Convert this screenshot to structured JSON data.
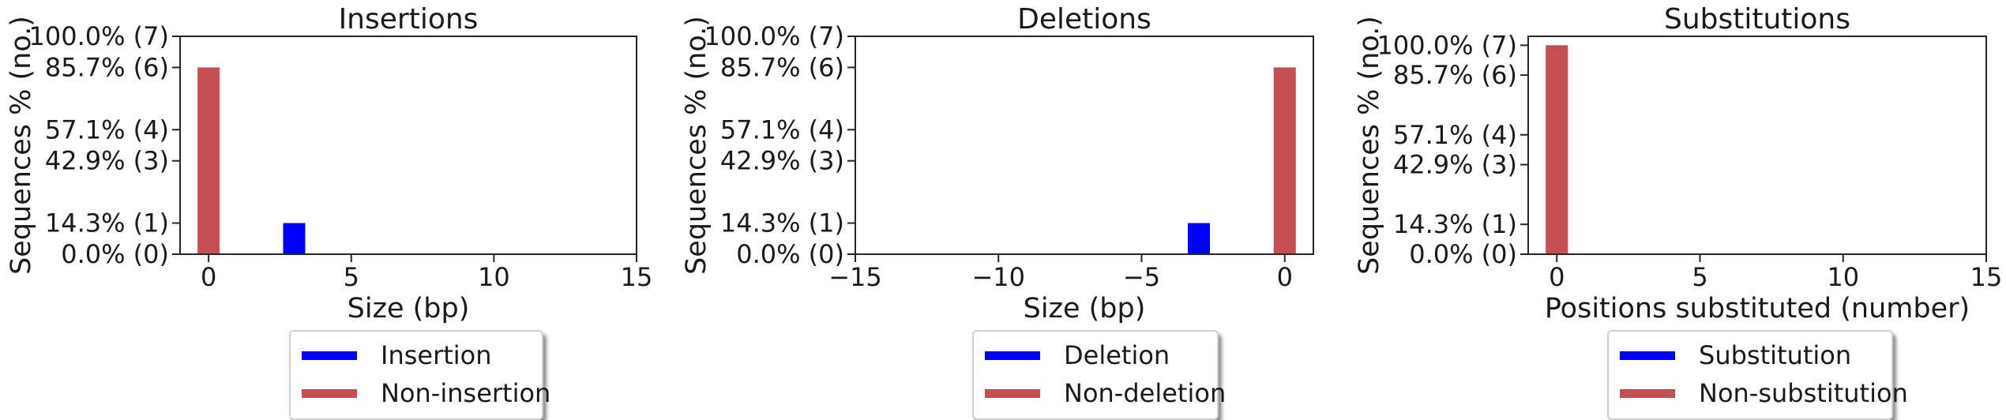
{
  "colors": {
    "highlight": "#0000ff",
    "other": "#c44e52"
  },
  "ytick_labels": [
    "0.0% (0)",
    "14.3% (1)",
    "42.9% (3)",
    "57.1% (4)",
    "85.7% (6)",
    "100.0% (7)"
  ],
  "chart_data": [
    {
      "type": "bar",
      "title": "Insertions",
      "xlabel": "Size (bp)",
      "ylabel": "Sequences % (no.)",
      "xlim": [
        -1,
        15
      ],
      "xticks": [
        0,
        5,
        10,
        15
      ],
      "xtick_labels": [
        "0",
        "5",
        "10",
        "15"
      ],
      "ylim": [
        0,
        7
      ],
      "yticks": [
        0,
        1,
        3,
        4,
        6,
        7
      ],
      "series": [
        {
          "name": "Insertion",
          "color": "#0000ff",
          "x": [
            3
          ],
          "values": [
            1
          ]
        },
        {
          "name": "Non-insertion",
          "color": "#c44e52",
          "x": [
            0
          ],
          "values": [
            6
          ]
        }
      ],
      "legend": [
        "Insertion",
        "Non-insertion"
      ],
      "legend_position": "below"
    },
    {
      "type": "bar",
      "title": "Deletions",
      "xlabel": "Size (bp)",
      "ylabel": "Sequences % (no.)",
      "xlim": [
        -15,
        1
      ],
      "xticks": [
        -15,
        -10,
        -5,
        0
      ],
      "xtick_labels": [
        "−15",
        "−10",
        "−5",
        "0"
      ],
      "ylim": [
        0,
        7
      ],
      "yticks": [
        0,
        1,
        3,
        4,
        6,
        7
      ],
      "series": [
        {
          "name": "Deletion",
          "color": "#0000ff",
          "x": [
            -3
          ],
          "values": [
            1
          ]
        },
        {
          "name": "Non-deletion",
          "color": "#c44e52",
          "x": [
            0
          ],
          "values": [
            6
          ]
        }
      ],
      "legend": [
        "Deletion",
        "Non-deletion"
      ],
      "legend_position": "below"
    },
    {
      "type": "bar",
      "title": "Substitutions",
      "xlabel": "Positions substituted (number)",
      "ylabel": "Sequences % (no.)",
      "xlim": [
        -1,
        15
      ],
      "xticks": [
        0,
        5,
        10,
        15
      ],
      "xtick_labels": [
        "0",
        "5",
        "10",
        "15"
      ],
      "ylim": [
        0,
        7.3
      ],
      "yticks": [
        0,
        1,
        3,
        4,
        6,
        7
      ],
      "series": [
        {
          "name": "Substitution",
          "color": "#0000ff",
          "x": [],
          "values": []
        },
        {
          "name": "Non-substitution",
          "color": "#c44e52",
          "x": [
            0
          ],
          "values": [
            7
          ]
        }
      ],
      "legend": [
        "Substitution",
        "Non-substitution"
      ],
      "legend_position": "below"
    }
  ]
}
